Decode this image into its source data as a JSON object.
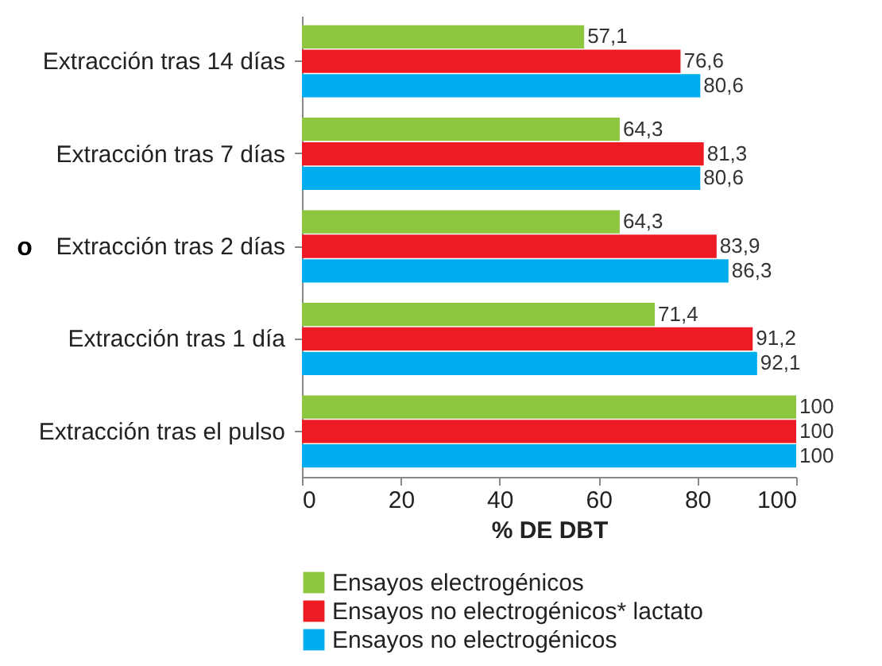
{
  "chart_data": {
    "type": "bar",
    "orientation": "horizontal",
    "xlabel": "% DE DBT",
    "ylabel": "o",
    "categories": [
      "Extracción tras 14 días",
      "Extracción tras 7 días",
      "Extracción tras 2 días",
      "Extracción tras 1 día",
      "Extracción tras el pulso"
    ],
    "series": [
      {
        "name": "Ensayos electrogénicos",
        "color": "#8dc63f",
        "values": [
          57.1,
          64.3,
          64.3,
          71.4,
          100
        ],
        "value_labels": [
          "57,1",
          "64,3",
          "64,3",
          "71,4",
          "100"
        ]
      },
      {
        "name": "Ensayos no electrogénicos* lactato",
        "color": "#ed1c24",
        "values": [
          76.6,
          81.3,
          83.9,
          91.2,
          100
        ],
        "value_labels": [
          "76,6",
          "81,3",
          "83,9",
          "91,2",
          "100"
        ]
      },
      {
        "name": "Ensayos no electrogénicos",
        "color": "#00aeef",
        "values": [
          80.6,
          80.6,
          86.3,
          92.1,
          100
        ],
        "value_labels": [
          "80,6",
          "80,6",
          "86,3",
          "92,1",
          "100"
        ]
      }
    ],
    "xlim": [
      0,
      100
    ],
    "xticks": [
      0,
      20,
      40,
      60,
      80,
      100
    ],
    "legend": "bottom",
    "grid": false
  }
}
